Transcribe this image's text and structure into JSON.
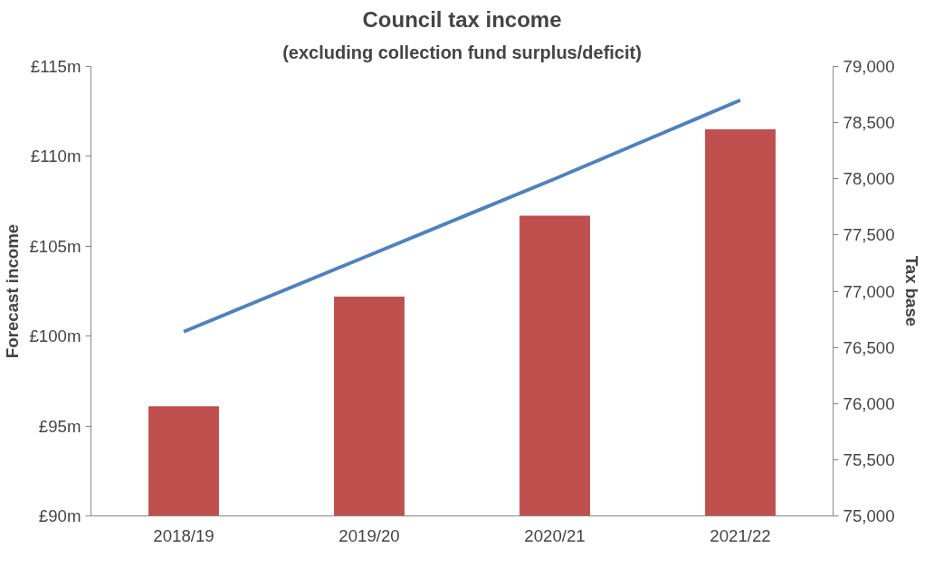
{
  "chart_data": {
    "type": "bar",
    "title": "Council tax income",
    "subtitle": "(excluding collection fund surplus/deficit)",
    "ylabel": "Forecast income",
    "y2label": "Tax base",
    "categories": [
      "2018/19",
      "2019/20",
      "2020/21",
      "2021/22"
    ],
    "series": [
      {
        "color": "#c0504d",
        "values": [
          96.1,
          102.2,
          106.7,
          111.5
        ]
      },
      {
        "type": "line",
        "color": "#4f81bd",
        "axis": "y2",
        "values": [
          76640,
          77320,
          78000,
          78700
        ]
      }
    ],
    "ylim": [
      90,
      115
    ],
    "yticks": [
      {
        "value": 90,
        "label": "£90m"
      },
      {
        "value": 95,
        "label": "£95m"
      },
      {
        "value": 100,
        "label": "£100m"
      },
      {
        "value": 105,
        "label": "£105m"
      },
      {
        "value": 110,
        "label": "£110m"
      },
      {
        "value": 115,
        "label": "£115m"
      }
    ],
    "y2lim": [
      75000,
      79000
    ],
    "y2ticks": [
      {
        "value": 75000,
        "label": "75,000"
      },
      {
        "value": 75500,
        "label": "75,500"
      },
      {
        "value": 76000,
        "label": "76,000"
      },
      {
        "value": 76500,
        "label": "76,500"
      },
      {
        "value": 77000,
        "label": "77,000"
      },
      {
        "value": 77500,
        "label": "77,500"
      },
      {
        "value": 78000,
        "label": "78,000"
      },
      {
        "value": 78500,
        "label": "78,500"
      },
      {
        "value": 79000,
        "label": "79,000"
      }
    ],
    "grid": false,
    "marker": "none",
    "line_style": "solid"
  }
}
